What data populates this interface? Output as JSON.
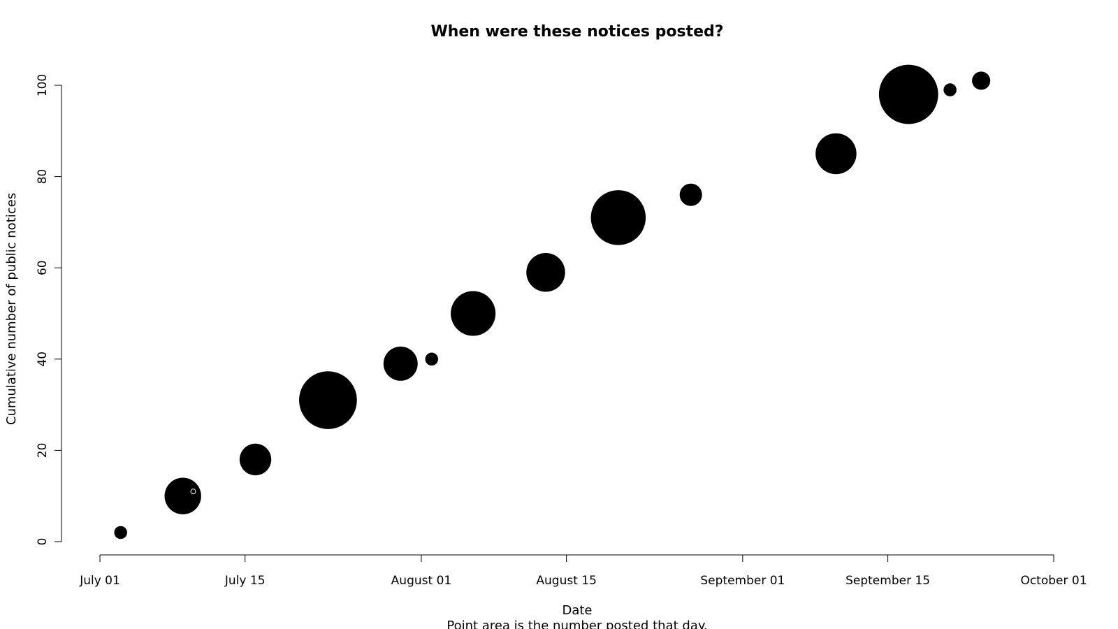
{
  "chart_data": {
    "type": "scatter",
    "title": "When were these notices posted?",
    "xlabel": "Date",
    "ylabel": "Cumulative number of public notices",
    "subtitle": "Point area is the number posted that day.",
    "x_ticks": [
      "July 01",
      "July 15",
      "August 01",
      "August 15",
      "September 01",
      "September 15",
      "October 01"
    ],
    "y_ticks": [
      "0",
      "20",
      "40",
      "60",
      "80",
      "100"
    ],
    "xlim": [
      "2014-07-01",
      "2014-10-01"
    ],
    "ylim": [
      0,
      100
    ],
    "grid": false,
    "legend": "none",
    "point_color": "#000000",
    "series": [
      {
        "points": [
          {
            "date": "2014-07-03",
            "y": 2,
            "count": 1
          },
          {
            "date": "2014-07-09",
            "y": 10,
            "count": 8
          },
          {
            "date": "2014-07-10",
            "y": 11,
            "count": 0.5,
            "hollow": true
          },
          {
            "date": "2014-07-16",
            "y": 18,
            "count": 6
          },
          {
            "date": "2014-07-23",
            "y": 31,
            "count": 20
          },
          {
            "date": "2014-07-30",
            "y": 39,
            "count": 7
          },
          {
            "date": "2014-08-02",
            "y": 40,
            "count": 1
          },
          {
            "date": "2014-08-06",
            "y": 50,
            "count": 12
          },
          {
            "date": "2014-08-13",
            "y": 59,
            "count": 9
          },
          {
            "date": "2014-08-20",
            "y": 71,
            "count": 18
          },
          {
            "date": "2014-08-27",
            "y": 76,
            "count": 3
          },
          {
            "date": "2014-09-10",
            "y": 85,
            "count": 10
          },
          {
            "date": "2014-09-17",
            "y": 98,
            "count": 21
          },
          {
            "date": "2014-09-21",
            "y": 99,
            "count": 1
          },
          {
            "date": "2014-09-24",
            "y": 101,
            "count": 2
          }
        ]
      }
    ]
  }
}
